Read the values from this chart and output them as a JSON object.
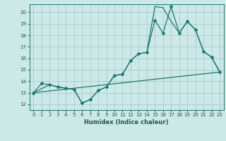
{
  "xlabel": "Humidex (Indice chaleur)",
  "bg_color": "#cce8e8",
  "grid_color": "#aacccc",
  "line_color": "#1a7a6e",
  "xlim": [
    -0.5,
    23.5
  ],
  "ylim": [
    11.5,
    20.7
  ],
  "yticks": [
    12,
    13,
    14,
    15,
    16,
    17,
    18,
    19,
    20
  ],
  "xticks": [
    0,
    1,
    2,
    3,
    4,
    5,
    6,
    7,
    8,
    9,
    10,
    11,
    12,
    13,
    14,
    15,
    16,
    17,
    18,
    19,
    20,
    21,
    22,
    23
  ],
  "line1_x": [
    0,
    1,
    2,
    3,
    4,
    5,
    6,
    7,
    8,
    9,
    10,
    11,
    12,
    13,
    14,
    15,
    16,
    17,
    18,
    19,
    20,
    21,
    22,
    23
  ],
  "line1_y": [
    13.0,
    13.8,
    13.7,
    13.5,
    13.4,
    13.3,
    12.1,
    12.4,
    13.2,
    13.5,
    14.5,
    14.6,
    15.8,
    16.4,
    16.5,
    19.3,
    18.2,
    20.5,
    18.2,
    19.2,
    18.5,
    16.6,
    16.1,
    14.8
  ],
  "line2_x": [
    0,
    2,
    3,
    4,
    5,
    6,
    7,
    8,
    9,
    10,
    11,
    12,
    13,
    14,
    15,
    16,
    17,
    18,
    19,
    20,
    21,
    22,
    23
  ],
  "line2_y": [
    13.0,
    13.7,
    13.5,
    13.4,
    13.3,
    12.1,
    12.4,
    13.2,
    13.5,
    14.5,
    14.6,
    15.8,
    16.4,
    16.5,
    20.5,
    20.4,
    19.2,
    18.2,
    19.2,
    18.5,
    16.6,
    16.1,
    14.8
  ],
  "line3_x": [
    0,
    23
  ],
  "line3_y": [
    13.0,
    14.8
  ]
}
